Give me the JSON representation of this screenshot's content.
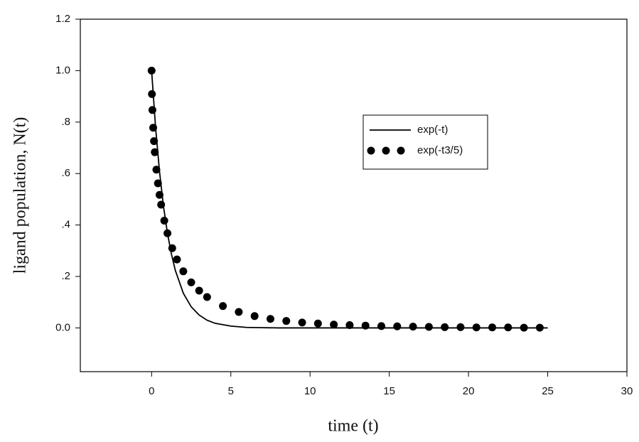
{
  "chart_data": {
    "type": "line",
    "xlabel": "time (t)",
    "ylabel": "ligand population, N(t)",
    "xlim": [
      -4.5,
      30
    ],
    "ylim": [
      -0.17,
      1.2
    ],
    "xticks": [
      0,
      5,
      10,
      15,
      20,
      25,
      30
    ],
    "yticks": [
      {
        "value": 0,
        "label": "0.0"
      },
      {
        "value": 0.2,
        "label": ".2"
      },
      {
        "value": 0.4,
        "label": ".4"
      },
      {
        "value": 0.6,
        "label": ".6"
      },
      {
        "value": 0.8,
        "label": ".8"
      },
      {
        "value": 1,
        "label": "1.0"
      },
      1.2
    ],
    "legend": "upper right",
    "series": [
      {
        "name": "exp(-t)",
        "color": "#000000",
        "style": "line",
        "x": [
          0,
          0.25,
          0.5,
          0.75,
          1,
          1.25,
          1.5,
          2,
          2.5,
          3,
          3.5,
          4,
          5,
          6,
          7,
          8,
          10,
          15,
          20,
          25
        ],
        "values": [
          1,
          0.779,
          0.607,
          0.472,
          0.368,
          0.287,
          0.223,
          0.135,
          0.082,
          0.05,
          0.03,
          0.018,
          0.007,
          0.002,
          0.001,
          0,
          0,
          0,
          0,
          0
        ]
      },
      {
        "name": "exp(-t3/5)",
        "color": "#000000",
        "style": "dots",
        "x": [
          0,
          0.02,
          0.05,
          0.1,
          0.15,
          0.2,
          0.3,
          0.4,
          0.5,
          0.6,
          0.8,
          1,
          1.3,
          1.6,
          2,
          2.5,
          3,
          3.5,
          4.5,
          5.5,
          6.5,
          7.5,
          8.5,
          9.5,
          10.5,
          11.5,
          12.5,
          13.5,
          14.5,
          15.5,
          16.5,
          17.5,
          18.5,
          19.5,
          20.5,
          21.5,
          22.5,
          23.5,
          24.5
        ],
        "values": [
          1,
          0.909,
          0.847,
          0.778,
          0.726,
          0.683,
          0.615,
          0.562,
          0.517,
          0.479,
          0.417,
          0.368,
          0.31,
          0.266,
          0.22,
          0.177,
          0.145,
          0.12,
          0.085,
          0.062,
          0.046,
          0.035,
          0.027,
          0.021,
          0.017,
          0.013,
          0.011,
          0.009,
          0.007,
          0.006,
          0.005,
          0.004,
          0.003,
          0.003,
          0.002,
          0.002,
          0.002,
          0.001,
          0.001
        ]
      }
    ]
  }
}
